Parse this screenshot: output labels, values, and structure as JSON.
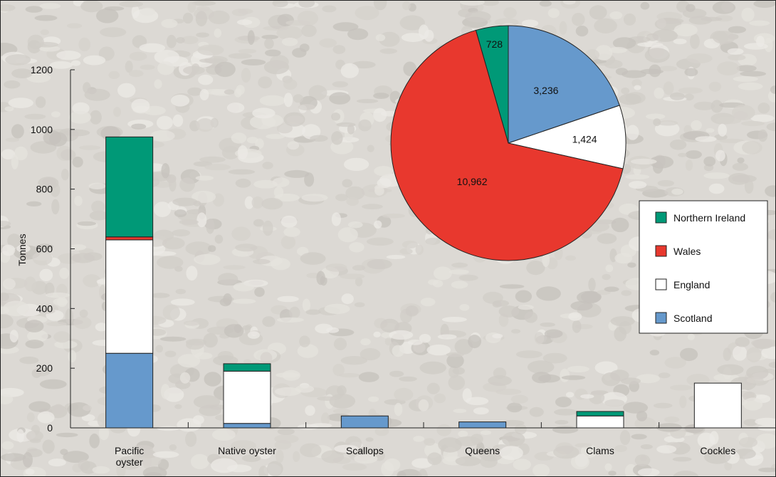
{
  "chart_data": [
    {
      "type": "bar",
      "stacked": true,
      "ylabel": "Tonnes",
      "ylim": [
        0,
        1200
      ],
      "yticks": [
        0,
        200,
        400,
        600,
        800,
        1000,
        1200
      ],
      "grid": false,
      "categories": [
        [
          "Pacific",
          "oyster"
        ],
        [
          "Native oyster"
        ],
        [
          "Scallops"
        ],
        [
          "Queens"
        ],
        [
          "Clams"
        ],
        [
          "Cockles"
        ]
      ],
      "series": [
        {
          "name": "Scotland",
          "color": "#6699cc",
          "values": [
            250,
            15,
            40,
            20,
            0,
            0
          ]
        },
        {
          "name": "England",
          "color": "#ffffff",
          "values": [
            380,
            175,
            0,
            0,
            40,
            150
          ]
        },
        {
          "name": "Wales",
          "color": "#e8382e",
          "values": [
            10,
            0,
            0,
            0,
            0,
            0
          ]
        },
        {
          "name": "Northern Ireland",
          "color": "#009977",
          "values": [
            335,
            25,
            0,
            0,
            15,
            0
          ]
        }
      ]
    },
    {
      "type": "pie",
      "slices": [
        {
          "name": "Scotland",
          "value": 3236,
          "label": "3,236",
          "color": "#6699cc"
        },
        {
          "name": "England",
          "value": 1424,
          "label": "1,424",
          "color": "#ffffff"
        },
        {
          "name": "Wales",
          "value": 10962,
          "label": "10,962",
          "color": "#e8382e"
        },
        {
          "name": "Northern Ireland",
          "value": 728,
          "label": "728",
          "color": "#009977"
        }
      ]
    }
  ],
  "legend": {
    "placement": "right",
    "items": [
      {
        "label": "Northern Ireland",
        "color": "#009977"
      },
      {
        "label": "Wales",
        "color": "#e8382e"
      },
      {
        "label": "England",
        "color": "#ffffff"
      },
      {
        "label": "Scotland",
        "color": "#6699cc"
      }
    ]
  }
}
